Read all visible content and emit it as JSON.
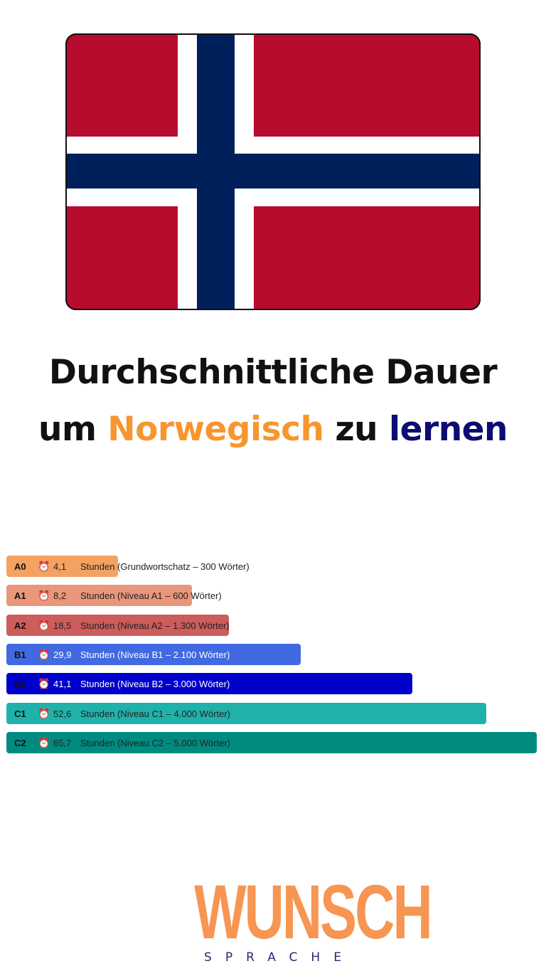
{
  "flag": {
    "name": "norway-flag",
    "colors": {
      "red": "#b80c2f",
      "white": "#ffffff",
      "blue": "#00205b"
    }
  },
  "title": {
    "line1": "Durchschnittliche Dauer",
    "line2_a": "um",
    "line2_b": "Norwegisch",
    "line2_c": "zu",
    "line2_d": "lernen",
    "accent_orange": "#f7962f",
    "accent_navy": "#0c0c72"
  },
  "chart_data": {
    "type": "bar",
    "orientation": "horizontal",
    "unit": "Stunden",
    "icon": "alarm-clock-icon",
    "categories": [
      "A0",
      "A1",
      "A2",
      "B1",
      "B2",
      "C1",
      "C2"
    ],
    "values": [
      4.1,
      8.2,
      18.5,
      29.9,
      41.1,
      52.6,
      65.7
    ],
    "bars": [
      {
        "level": "A0",
        "hours": "4,1",
        "text": "Stunden (Grundwortschatz – 300 Wörter)",
        "fill": 0.21,
        "color": "#f4a261",
        "light": false
      },
      {
        "level": "A1",
        "hours": "8,2",
        "text": "Stunden (Niveau A1 – 600 Wörter)",
        "fill": 0.35,
        "color": "#e9967a",
        "light": false
      },
      {
        "level": "A2",
        "hours": "18,5",
        "text": "Stunden (Niveau A2 – 1.300 Wörter)",
        "fill": 0.42,
        "color": "#cd5c5c",
        "light": false
      },
      {
        "level": "B1",
        "hours": "29,9",
        "text": "Stunden (Niveau B1 – 2.100 Wörter)",
        "fill": 0.555,
        "color": "#4169e1",
        "light": true
      },
      {
        "level": "B2",
        "hours": "41,1",
        "text": "Stunden (Niveau B2 – 3.000 Wörter)",
        "fill": 0.765,
        "color": "#0000cd",
        "light": true
      },
      {
        "level": "C1",
        "hours": "52,6",
        "text": "Stunden (Niveau C1 – 4.000 Wörter)",
        "fill": 0.905,
        "color": "#20b2aa",
        "light": false
      },
      {
        "level": "C2",
        "hours": "65,7",
        "text": "Stunden (Niveau C2 – 5.000 Wörter)",
        "fill": 1.0,
        "color": "#008b80",
        "light": false
      }
    ]
  },
  "logo": {
    "main": "WUNSCH",
    "sub": "SPRACHE"
  }
}
